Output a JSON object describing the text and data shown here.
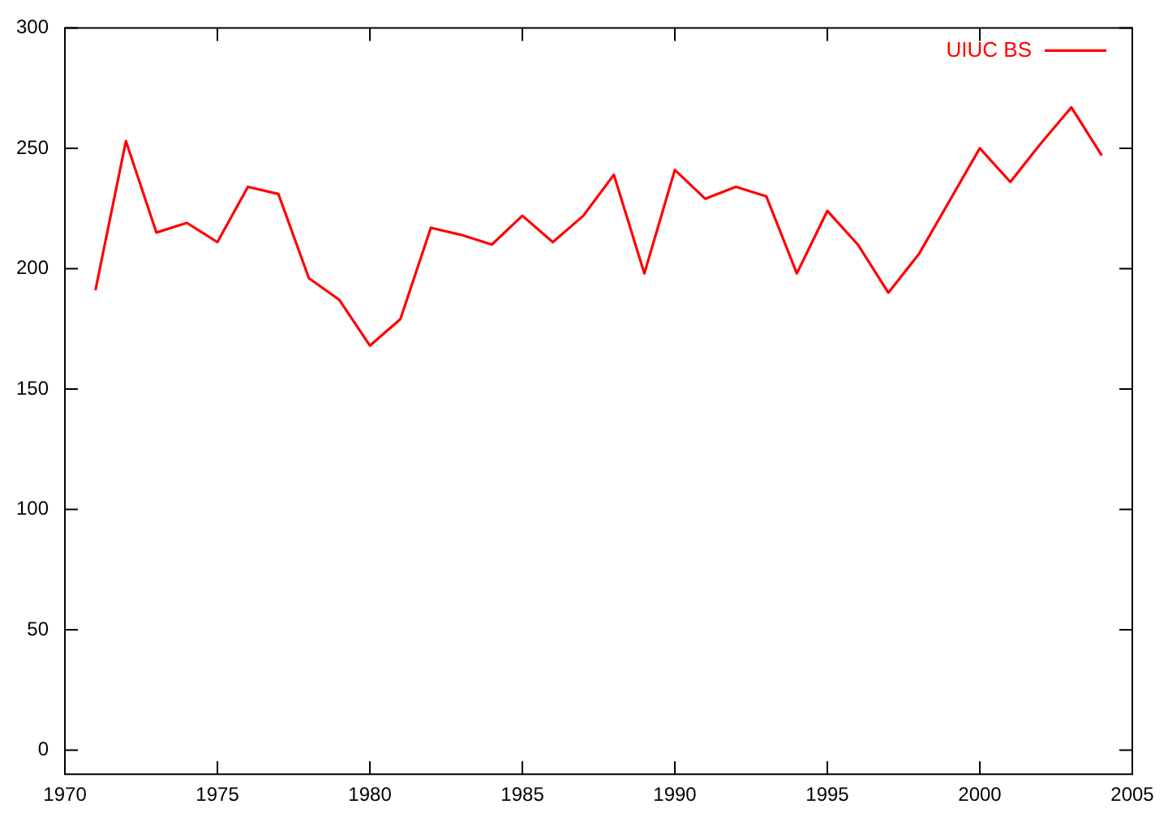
{
  "chart_data": {
    "type": "line",
    "x": [
      1971,
      1972,
      1973,
      1974,
      1975,
      1976,
      1977,
      1978,
      1979,
      1980,
      1981,
      1982,
      1983,
      1984,
      1985,
      1986,
      1987,
      1988,
      1989,
      1990,
      1991,
      1992,
      1993,
      1994,
      1995,
      1996,
      1997,
      1998,
      1999,
      2000,
      2001,
      2002,
      2003,
      2004
    ],
    "series": [
      {
        "name": "UIUC BS",
        "color": "#ff0000",
        "values": [
          191,
          253,
          215,
          219,
          211,
          234,
          231,
          196,
          187,
          168,
          179,
          217,
          214,
          210,
          222,
          211,
          222,
          239,
          198,
          241,
          229,
          234,
          230,
          198,
          224,
          210,
          190,
          206,
          228,
          250,
          236,
          252,
          267,
          247
        ]
      }
    ],
    "xlim": [
      1970,
      2005
    ],
    "xticks": [
      1970,
      1975,
      1980,
      1985,
      1990,
      1995,
      2000,
      2005
    ],
    "ylim": [
      -10,
      300
    ],
    "yticks": [
      0,
      50,
      100,
      150,
      200,
      250,
      300
    ],
    "legend": "top right",
    "grid": false,
    "marker": "none",
    "line_style": "solid"
  }
}
